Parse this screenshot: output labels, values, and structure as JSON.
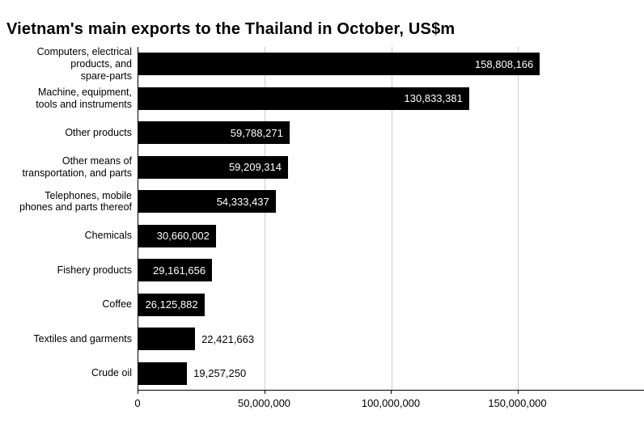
{
  "chart_data": {
    "type": "bar",
    "orientation": "horizontal",
    "title": "Vietnam's main exports to the Thailand in October, US$m",
    "xlabel": "",
    "ylabel": "",
    "xlim": [
      0,
      200000000
    ],
    "grid": true,
    "legend": false,
    "bar_color": "#000000",
    "gridline_color": "#cccccc",
    "axis_color": "#000000",
    "inside_label_color": "#ffffff",
    "outside_label_color": "#000000",
    "bars": [
      {
        "category": "Computers, electrical\nproducts, and\nspare-parts",
        "value": 158808166,
        "label": "158,808,166",
        "label_position": "inside"
      },
      {
        "category": "Machine, equipment,\ntools and instruments",
        "value": 130833381,
        "label": "130,833,381",
        "label_position": "inside"
      },
      {
        "category": "Other products",
        "value": 59788271,
        "label": "59,788,271",
        "label_position": "inside"
      },
      {
        "category": "Other means of\ntransportation, and parts",
        "value": 59209314,
        "label": "59,209,314",
        "label_position": "inside"
      },
      {
        "category": "Telephones, mobile\nphones and parts thereof",
        "value": 54333437,
        "label": "54,333,437",
        "label_position": "inside"
      },
      {
        "category": "Chemicals",
        "value": 30660002,
        "label": "30,660,002",
        "label_position": "inside"
      },
      {
        "category": "Fishery products",
        "value": 29161656,
        "label": "29,161,656",
        "label_position": "inside"
      },
      {
        "category": "Coffee",
        "value": 26125882,
        "label": "26,125,882",
        "label_position": "inside"
      },
      {
        "category": "Textiles and garments",
        "value": 22421663,
        "label": "22,421,663",
        "label_position": "outside"
      },
      {
        "category": "Crude oil",
        "value": 19257250,
        "label": "19,257,250",
        "label_position": "outside"
      }
    ],
    "x_ticks": [
      {
        "value": 0,
        "label": "0"
      },
      {
        "value": 50000000,
        "label": "50,000,000"
      },
      {
        "value": 100000000,
        "label": "100,000,000"
      },
      {
        "value": 150000000,
        "label": "150,000,000"
      }
    ]
  }
}
